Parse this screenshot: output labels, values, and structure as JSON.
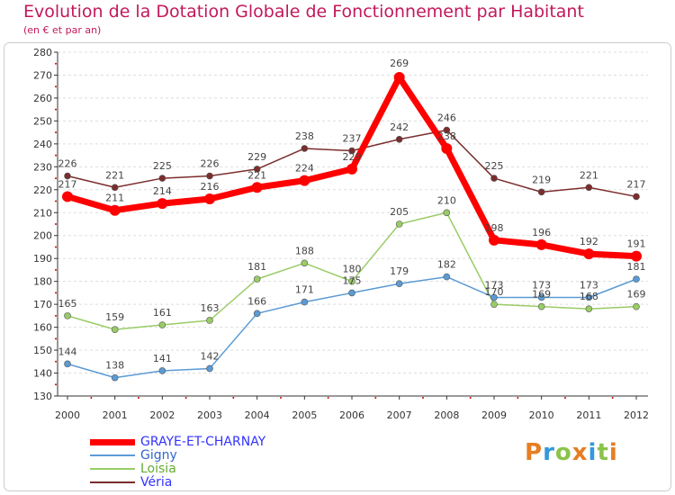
{
  "header": {
    "title": "Evolution de la Dotation Globale de Fonctionnement par Habitant",
    "subtitle": "(en € et par an)"
  },
  "logo": {
    "text": "Proxiti",
    "colors": [
      "#e67e22",
      "#3498db",
      "#8bc34a",
      "#e67e22",
      "#3498db",
      "#8bc34a",
      "#e67e22"
    ]
  },
  "chart_data": {
    "type": "line",
    "title": "Evolution de la Dotation Globale de Fonctionnement par Habitant",
    "subtitle": "(en € et par an)",
    "xlabel": "",
    "ylabel": "",
    "ylim": [
      130,
      280
    ],
    "ytick_step": 10,
    "grid": "horizontal dashed",
    "legend_position": "bottom-left",
    "categories": [
      "2000",
      "2001",
      "2002",
      "2003",
      "2004",
      "2005",
      "2006",
      "2007",
      "2008",
      "2009",
      "2010",
      "2011",
      "2012"
    ],
    "series": [
      {
        "name": "GRAYE-ET-CHARNAY",
        "color": "#ff0000",
        "legend_color": "#3333ff",
        "width": 7,
        "marker": 6,
        "values": [
          217,
          211,
          214,
          216,
          221,
          224,
          229,
          269,
          238,
          198,
          196,
          192,
          191
        ],
        "label_dy": [
          -10,
          -10,
          -10,
          -10,
          -10,
          -10,
          -10,
          -12,
          -10,
          -10,
          -10,
          -10,
          -10
        ]
      },
      {
        "name": "Gigny",
        "color": "#5b9bd5",
        "legend_color": "#3366cc",
        "width": 1.5,
        "marker": 3.5,
        "values": [
          144,
          138,
          141,
          142,
          166,
          171,
          175,
          179,
          182,
          173,
          173,
          173,
          181
        ],
        "label_dy": [
          -10,
          -10,
          -10,
          -10,
          -10,
          -10,
          -10,
          -10,
          -10,
          -10,
          -10,
          -10,
          -10
        ]
      },
      {
        "name": "Loisia",
        "color": "#99cc66",
        "legend_color": "#66aa33",
        "width": 1.5,
        "marker": 3.5,
        "values": [
          165,
          159,
          161,
          163,
          181,
          188,
          180,
          205,
          210,
          170,
          169,
          168,
          169
        ],
        "label_dy": [
          -10,
          -10,
          -10,
          -10,
          -10,
          -10,
          -10,
          -10,
          -10,
          -10,
          -10,
          -10,
          -10
        ]
      },
      {
        "name": "Véria",
        "color": "#7b2d2d",
        "legend_color": "#3333ff",
        "width": 1.5,
        "marker": 3.5,
        "values": [
          226,
          221,
          225,
          226,
          229,
          238,
          237,
          242,
          246,
          225,
          219,
          221,
          217
        ],
        "label_dy": [
          -10,
          -10,
          -10,
          -10,
          -10,
          -10,
          -10,
          -10,
          -10,
          -10,
          -10,
          -10,
          -10
        ]
      }
    ]
  }
}
